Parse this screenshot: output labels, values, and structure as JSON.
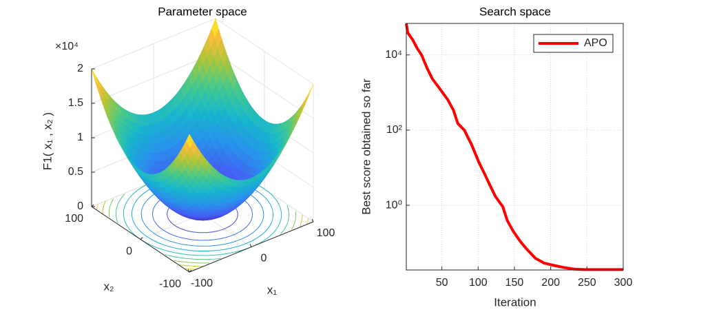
{
  "chart_data": [
    {
      "type": "surface",
      "title": "Parameter space",
      "xlabel": "x₁",
      "ylabel": "x₂",
      "zlabel": "F1( x₁ , x₂ )",
      "xlim": [
        -100,
        100
      ],
      "ylim": [
        -100,
        100
      ],
      "zlim": [
        0,
        2
      ],
      "xticks": [
        -100,
        0,
        100
      ],
      "yticks": [
        -100,
        0,
        100
      ],
      "zticks": [
        0,
        0.5,
        1,
        1.5,
        2
      ],
      "z_multiplier": "×10⁴",
      "contour": true,
      "grid": true
    },
    {
      "type": "line",
      "title": "Search space",
      "xlabel": "Iteration",
      "ylabel": "Best score obtained so far",
      "yscale": "log",
      "x": [
        1,
        3,
        10,
        16,
        22,
        30,
        37,
        48,
        58,
        66,
        72,
        81,
        91,
        101,
        110,
        117,
        124,
        134,
        140,
        148,
        158,
        167,
        179,
        191,
        205,
        219,
        233,
        248,
        300
      ],
      "series": [
        {
          "name": "APO",
          "color": "#ff0000",
          "values": [
            69000,
            39000,
            25000,
            15000,
            10000,
            4300,
            2300,
            1200,
            650,
            340,
            150,
            100,
            41,
            14,
            6.2,
            3.2,
            1.7,
            0.92,
            0.4,
            0.21,
            0.11,
            0.068,
            0.039,
            0.029,
            0.025,
            0.022,
            0.02,
            0.0195,
            0.0195
          ]
        }
      ],
      "xlim": [
        1,
        300
      ],
      "ylim": [
        0.019,
        69000
      ],
      "xticks": [
        50,
        100,
        150,
        200,
        250,
        300
      ],
      "yticks": [
        {
          "value": 1,
          "label": "10⁰"
        },
        {
          "value": 100,
          "label": "10²"
        },
        {
          "value": 10000,
          "label": "10⁴"
        }
      ],
      "grid": true,
      "legend": "top-right"
    }
  ]
}
